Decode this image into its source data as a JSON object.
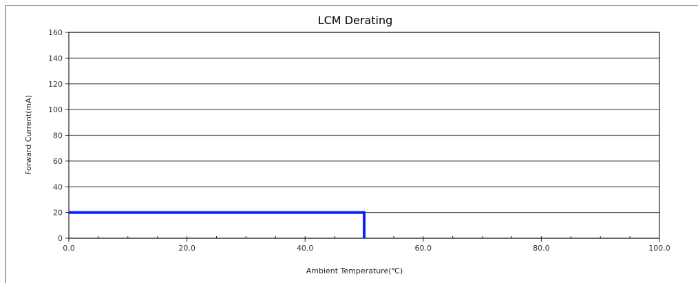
{
  "chart_data": {
    "type": "line",
    "title": "LCM Derating",
    "xlabel": "Ambient Temperature(℃)",
    "ylabel": "Forward Current(mA)",
    "xlim": [
      0,
      100
    ],
    "ylim": [
      0,
      160
    ],
    "xticks": [
      {
        "value": 0,
        "label": "0.0"
      },
      {
        "value": 20,
        "label": "20.0"
      },
      {
        "value": 40,
        "label": "40.0"
      },
      {
        "value": 60,
        "label": "60.0"
      },
      {
        "value": 80,
        "label": "80.0"
      },
      {
        "value": 100,
        "label": "100.0"
      }
    ],
    "yticks": [
      {
        "value": 0,
        "label": "0"
      },
      {
        "value": 20,
        "label": "20"
      },
      {
        "value": 40,
        "label": "40"
      },
      {
        "value": 60,
        "label": "60"
      },
      {
        "value": 80,
        "label": "80"
      },
      {
        "value": 100,
        "label": "100"
      },
      {
        "value": 120,
        "label": "120"
      },
      {
        "value": 140,
        "label": "140"
      },
      {
        "value": 160,
        "label": "160"
      }
    ],
    "x_minor_step": 5,
    "grid": {
      "horizontal": true,
      "vertical": false
    },
    "series": [
      {
        "color": "#0a1eff",
        "points": [
          {
            "x": 0,
            "y": 20
          },
          {
            "x": 50,
            "y": 20
          },
          {
            "x": 50,
            "y": 0
          }
        ]
      }
    ]
  }
}
